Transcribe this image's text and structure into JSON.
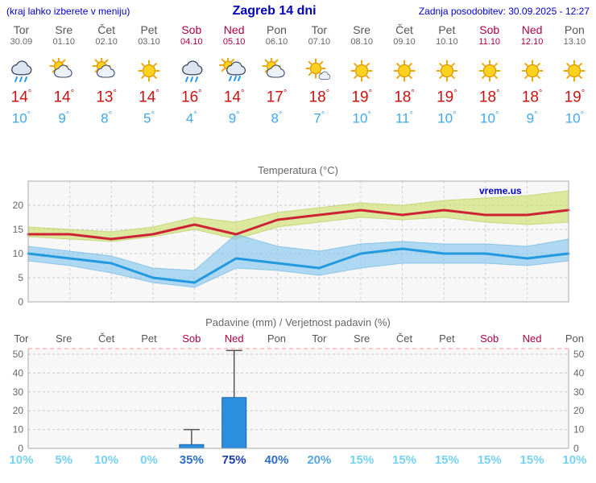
{
  "header": {
    "left_note": "(kraj lahko izberete v meniju)",
    "title": "Zagreb 14 dni",
    "updated": "Zadnja posodobitev: 30.09.2025 - 12:27"
  },
  "watermark": "vreme.us",
  "days": [
    {
      "name": "Tor",
      "date": "30.09",
      "weekend": false,
      "icon": "rain",
      "tmax": 14,
      "tmin": 10
    },
    {
      "name": "Sre",
      "date": "01.10",
      "weekend": false,
      "icon": "partly-cloudy",
      "tmax": 14,
      "tmin": 9
    },
    {
      "name": "Čet",
      "date": "02.10",
      "weekend": false,
      "icon": "partly-cloudy",
      "tmax": 13,
      "tmin": 8
    },
    {
      "name": "Pet",
      "date": "03.10",
      "weekend": false,
      "icon": "sunny",
      "tmax": 14,
      "tmin": 5
    },
    {
      "name": "Sob",
      "date": "04.10",
      "weekend": true,
      "icon": "rain",
      "tmax": 16,
      "tmin": 4
    },
    {
      "name": "Ned",
      "date": "05.10",
      "weekend": true,
      "icon": "sun-rain",
      "tmax": 14,
      "tmin": 9
    },
    {
      "name": "Pon",
      "date": "06.10",
      "weekend": false,
      "icon": "partly-cloudy",
      "tmax": 17,
      "tmin": 8
    },
    {
      "name": "Tor",
      "date": "07.10",
      "weekend": false,
      "icon": "mostly-sunny",
      "tmax": 18,
      "tmin": 7
    },
    {
      "name": "Sre",
      "date": "08.10",
      "weekend": false,
      "icon": "sunny",
      "tmax": 19,
      "tmin": 10
    },
    {
      "name": "Čet",
      "date": "09.10",
      "weekend": false,
      "icon": "sunny",
      "tmax": 18,
      "tmin": 11
    },
    {
      "name": "Pet",
      "date": "10.10",
      "weekend": false,
      "icon": "sunny",
      "tmax": 19,
      "tmin": 10
    },
    {
      "name": "Sob",
      "date": "11.10",
      "weekend": true,
      "icon": "sunny",
      "tmax": 18,
      "tmin": 10
    },
    {
      "name": "Ned",
      "date": "12.10",
      "weekend": true,
      "icon": "sunny",
      "tmax": 18,
      "tmin": 9
    },
    {
      "name": "Pon",
      "date": "13.10",
      "weekend": false,
      "icon": "sunny",
      "tmax": 19,
      "tmin": 10
    }
  ],
  "chart_data": [
    {
      "type": "line",
      "title": "Temperatura (°C)",
      "categories": [
        "Tor",
        "Sre",
        "Čet",
        "Pet",
        "Sob",
        "Ned",
        "Pon",
        "Tor",
        "Sre",
        "Čet",
        "Pet",
        "Sob",
        "Ned",
        "Pon"
      ],
      "series": [
        {
          "name": "temperatura max",
          "color": "#cc2233",
          "values": [
            14,
            14,
            13,
            14,
            16,
            14,
            17,
            18,
            19,
            18,
            19,
            18,
            18,
            19
          ]
        },
        {
          "name": "temperatura min",
          "color": "#2299dd",
          "values": [
            10,
            9,
            8,
            5,
            4,
            9,
            8,
            7,
            10,
            11,
            10,
            10,
            9,
            10
          ]
        }
      ],
      "bands": [
        {
          "name": "max-range",
          "fill": "#cde06e",
          "edge": "#b9cf5e",
          "upper": [
            15.5,
            15,
            14.5,
            15.5,
            17.5,
            16.5,
            18.5,
            19.5,
            20.5,
            20,
            21,
            21.5,
            22,
            23
          ],
          "lower": [
            13.5,
            13,
            12.5,
            13.5,
            15,
            13,
            15.5,
            16.5,
            17.5,
            17,
            17.5,
            16.5,
            16,
            16.5
          ]
        },
        {
          "name": "min-range",
          "fill": "#87c8f0",
          "edge": "#6fb7e0",
          "upper": [
            11.5,
            10.5,
            9.5,
            7,
            6.5,
            14,
            11.5,
            10.5,
            12,
            12.5,
            12,
            12,
            11.5,
            13
          ],
          "lower": [
            8.5,
            7.5,
            6,
            4,
            3,
            7,
            6.5,
            5.5,
            7,
            8,
            8,
            8,
            7.5,
            8.5
          ]
        }
      ],
      "ylim": [
        0,
        25
      ],
      "yticks": [
        0,
        5,
        10,
        15,
        20
      ],
      "grid": true,
      "legend": "none"
    },
    {
      "type": "bar",
      "title": "Padavine (mm) / Verjetnost padavin (%)",
      "categories": [
        "Tor",
        "Sre",
        "Čet",
        "Pet",
        "Sob",
        "Ned",
        "Pon",
        "Tor",
        "Sre",
        "Čet",
        "Pet",
        "Sob",
        "Ned",
        "Pon"
      ],
      "values": [
        0,
        0,
        0,
        0,
        2,
        27,
        0,
        0,
        0,
        0,
        0,
        0,
        0,
        0
      ],
      "whisker_max": [
        0,
        0,
        0,
        0,
        10,
        52,
        0,
        0,
        0,
        0,
        0,
        0,
        0,
        0
      ],
      "probabilities_pct": [
        10,
        5,
        10,
        0,
        35,
        75,
        40,
        20,
        15,
        15,
        15,
        15,
        15,
        10
      ],
      "bar_color": "#2b8ede",
      "ylim": [
        0,
        53
      ],
      "yticks": [
        0,
        10,
        20,
        30,
        40,
        50
      ],
      "grid": true,
      "legend": "none"
    }
  ]
}
